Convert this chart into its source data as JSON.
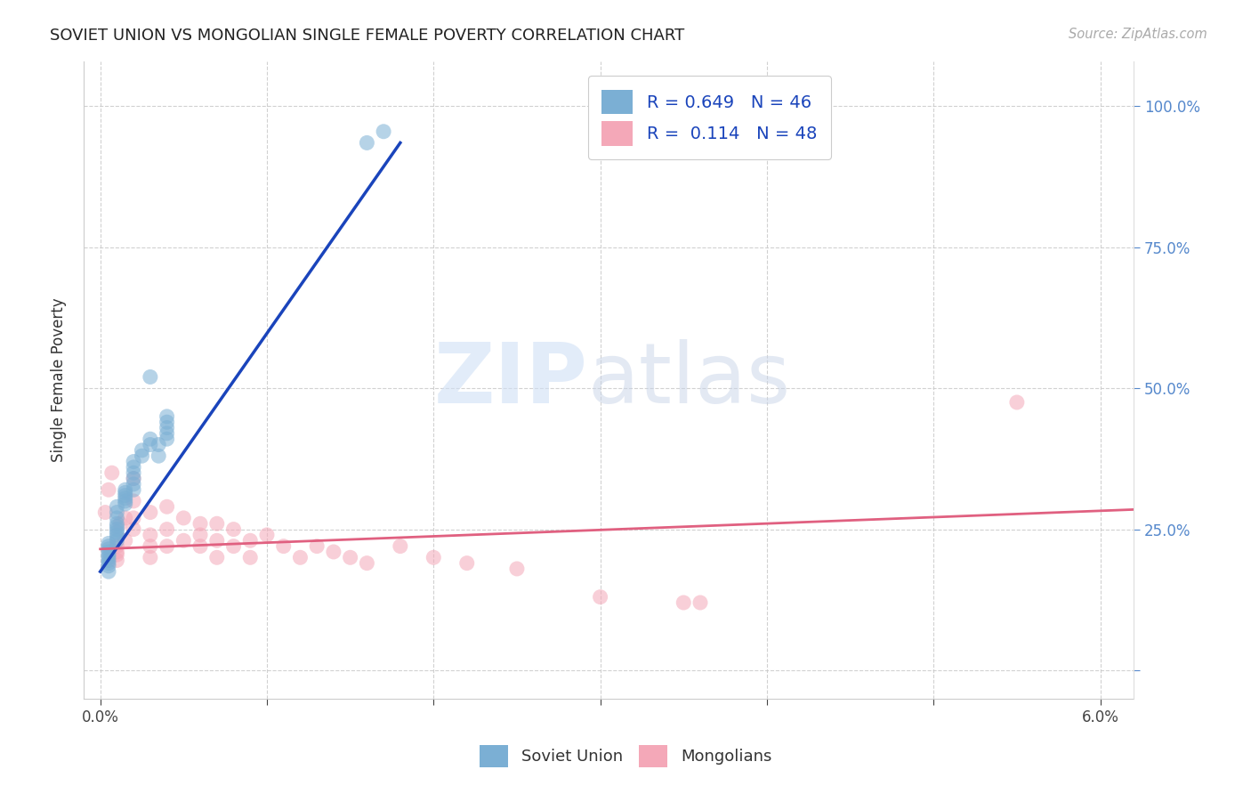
{
  "title": "SOVIET UNION VS MONGOLIAN SINGLE FEMALE POVERTY CORRELATION CHART",
  "source": "Source: ZipAtlas.com",
  "ylabel": "Single Female Poverty",
  "xlim": [
    -0.001,
    0.062
  ],
  "ylim": [
    -0.05,
    1.08
  ],
  "xticks": [
    0.0,
    0.01,
    0.02,
    0.03,
    0.04,
    0.05,
    0.06
  ],
  "xticklabels": [
    "0.0%",
    "",
    "",
    "",
    "",
    "",
    "6.0%"
  ],
  "yticks_right": [
    0.0,
    0.25,
    0.5,
    0.75,
    1.0
  ],
  "yticklabels_right": [
    "",
    "25.0%",
    "50.0%",
    "75.0%",
    "100.0%"
  ],
  "soviet_R": 0.649,
  "soviet_N": 46,
  "mongolian_R": 0.114,
  "mongolian_N": 48,
  "soviet_color": "#7bafd4",
  "mongolian_color": "#f4a8b8",
  "soviet_line_color": "#1a44bb",
  "mongolian_line_color": "#e06080",
  "background_color": "#ffffff",
  "soviet_x": [
    0.0005,
    0.0005,
    0.0005,
    0.0005,
    0.0005,
    0.0005,
    0.0005,
    0.0005,
    0.0005,
    0.0005,
    0.001,
    0.001,
    0.001,
    0.001,
    0.001,
    0.001,
    0.001,
    0.001,
    0.001,
    0.001,
    0.0015,
    0.0015,
    0.0015,
    0.0015,
    0.0015,
    0.0015,
    0.002,
    0.002,
    0.002,
    0.002,
    0.002,
    0.002,
    0.0025,
    0.0025,
    0.003,
    0.003,
    0.003,
    0.0035,
    0.0035,
    0.004,
    0.004,
    0.004,
    0.004,
    0.004,
    0.016,
    0.017
  ],
  "soviet_y": [
    0.175,
    0.185,
    0.19,
    0.195,
    0.2,
    0.205,
    0.21,
    0.215,
    0.22,
    0.225,
    0.23,
    0.235,
    0.24,
    0.245,
    0.25,
    0.255,
    0.26,
    0.27,
    0.28,
    0.29,
    0.295,
    0.3,
    0.305,
    0.31,
    0.315,
    0.32,
    0.32,
    0.33,
    0.34,
    0.35,
    0.36,
    0.37,
    0.38,
    0.39,
    0.4,
    0.41,
    0.52,
    0.38,
    0.4,
    0.41,
    0.42,
    0.43,
    0.44,
    0.45,
    0.935,
    0.955
  ],
  "mongolian_x": [
    0.0003,
    0.0005,
    0.0007,
    0.001,
    0.001,
    0.001,
    0.001,
    0.0012,
    0.0015,
    0.0015,
    0.002,
    0.002,
    0.002,
    0.002,
    0.003,
    0.003,
    0.003,
    0.003,
    0.004,
    0.004,
    0.004,
    0.005,
    0.005,
    0.006,
    0.006,
    0.006,
    0.007,
    0.007,
    0.007,
    0.008,
    0.008,
    0.009,
    0.009,
    0.01,
    0.011,
    0.012,
    0.013,
    0.014,
    0.015,
    0.016,
    0.018,
    0.02,
    0.022,
    0.025,
    0.03,
    0.035,
    0.055,
    0.036
  ],
  "mongolian_y": [
    0.28,
    0.32,
    0.35,
    0.195,
    0.205,
    0.21,
    0.22,
    0.26,
    0.23,
    0.27,
    0.25,
    0.27,
    0.3,
    0.34,
    0.2,
    0.22,
    0.24,
    0.28,
    0.22,
    0.25,
    0.29,
    0.23,
    0.27,
    0.22,
    0.24,
    0.26,
    0.2,
    0.23,
    0.26,
    0.22,
    0.25,
    0.2,
    0.23,
    0.24,
    0.22,
    0.2,
    0.22,
    0.21,
    0.2,
    0.19,
    0.22,
    0.2,
    0.19,
    0.18,
    0.13,
    0.12,
    0.475,
    0.12
  ],
  "blue_line_x0": 0.0,
  "blue_line_y0": 0.175,
  "blue_line_x1": 0.018,
  "blue_line_y1": 0.935,
  "pink_line_x0": 0.0,
  "pink_line_y0": 0.215,
  "pink_line_x1": 0.062,
  "pink_line_y1": 0.285
}
